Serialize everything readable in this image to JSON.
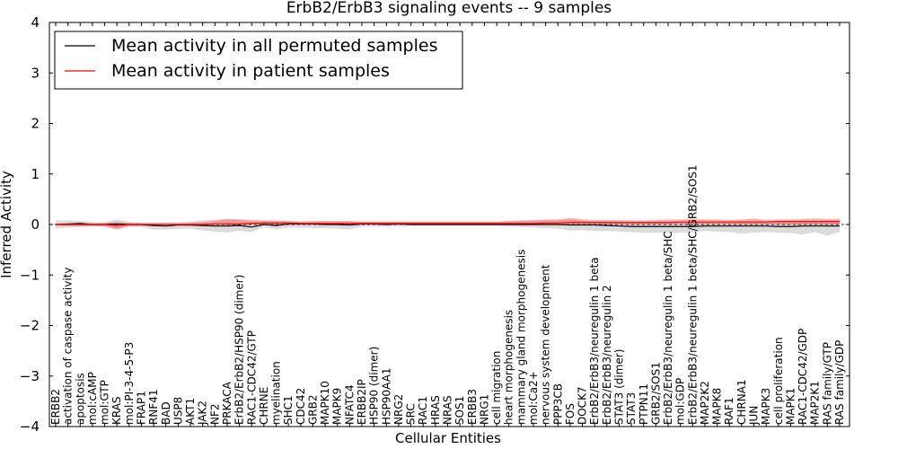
{
  "chart_data": {
    "type": "line",
    "title": "ErbB2/ErbB3 signaling events -- 9 samples",
    "xlabel": "Cellular Entities",
    "ylabel": "Inferred Activity",
    "ylim": [
      -4,
      4
    ],
    "yticks": [
      -4,
      -3,
      -2,
      -1,
      0,
      1,
      2,
      3,
      4
    ],
    "grid": false,
    "legend_placement": "top-left",
    "categories": [
      "ERBB2",
      "activation of caspase activity",
      "apoptosis",
      "mol:cAMP",
      "mol:GTP",
      "KRAS",
      "mol:PI-3-4-5-P3",
      "FRAP1",
      "RNF41",
      "BAD",
      "USP8",
      "AKT1",
      "JAK2",
      "NF2",
      "PRKACA",
      "ErbB2/ErbB2/HSP90 (dimer)",
      "RAC1-CDC42/GTP",
      "CHRNE",
      "myelination",
      "SHC1",
      "CDC42",
      "GRB2",
      "MAPK10",
      "MAPK9",
      "NFATC4",
      "ERBB2IP",
      "HSP90 (dimer)",
      "HSP90AA1",
      "NRG2",
      "SRC",
      "RAC1",
      "HRAS",
      "NRAS",
      "SOS1",
      "ERBB3",
      "NRG1",
      "cell migration",
      "heart morphogenesis",
      "mammary gland morphogenesis",
      "mol:Ca2+",
      "nervous system development",
      "PPP3CB",
      "FOS",
      "DOCK7",
      "ErbB2/ErbB3/neuregulin 1 beta",
      "ErbB2/ErbB3/neuregulin 2",
      "STAT3 (dimer)",
      "STAT3",
      "PTPN11",
      "GRB2/SOS1",
      "ErbB2/ErbB3/neuregulin 1 beta/SHC",
      "mol:GDP",
      "ErbB2/ErbB3/neuregulin 1 beta/SHC/GRB2/SOS1",
      "MAP2K2",
      "MAPK8",
      "RAF1",
      "CHRNA1",
      "JUN",
      "MAPK3",
      "cell proliferation",
      "MAPK1",
      "RAC1-CDC42/GDP",
      "MAP2K1",
      "RAS family/GTP",
      "RAS family/GDP"
    ],
    "series": [
      {
        "name": "Mean activity in all permuted samples",
        "color": "#000000",
        "values": [
          0.0,
          0.01,
          0.02,
          0.0,
          0.0,
          0.01,
          0.0,
          0.0,
          -0.02,
          -0.03,
          -0.01,
          -0.01,
          -0.02,
          -0.03,
          -0.03,
          -0.02,
          -0.05,
          0.0,
          -0.02,
          0.01,
          0.01,
          0.01,
          0.0,
          0.0,
          -0.01,
          0.01,
          0.01,
          0.0,
          0.01,
          0.0,
          0.0,
          0.0,
          0.0,
          0.0,
          0.0,
          0.0,
          0.0,
          0.0,
          0.0,
          0.0,
          0.0,
          0.0,
          -0.01,
          -0.01,
          -0.01,
          -0.02,
          -0.03,
          -0.04,
          -0.04,
          -0.04,
          -0.04,
          -0.04,
          -0.04,
          -0.03,
          -0.03,
          -0.03,
          -0.03,
          -0.03,
          -0.03,
          -0.04,
          -0.04,
          -0.03,
          -0.03,
          -0.03,
          -0.03
        ],
        "band_lower": [
          -0.08,
          -0.06,
          -0.05,
          -0.04,
          -0.03,
          -0.08,
          -0.03,
          -0.05,
          -0.1,
          -0.1,
          -0.09,
          -0.08,
          -0.12,
          -0.14,
          -0.16,
          -0.12,
          -0.15,
          -0.05,
          -0.1,
          -0.06,
          -0.06,
          -0.07,
          -0.07,
          -0.08,
          -0.1,
          -0.04,
          -0.03,
          -0.04,
          -0.03,
          -0.03,
          -0.03,
          -0.03,
          -0.03,
          -0.03,
          -0.03,
          -0.03,
          -0.03,
          -0.04,
          -0.05,
          -0.06,
          -0.07,
          -0.08,
          -0.12,
          -0.11,
          -0.13,
          -0.13,
          -0.14,
          -0.15,
          -0.16,
          -0.16,
          -0.17,
          -0.16,
          -0.15,
          -0.13,
          -0.14,
          -0.15,
          -0.18,
          -0.16,
          -0.15,
          -0.16,
          -0.17,
          -0.2,
          -0.15,
          -0.22,
          -0.15
        ],
        "band_upper": [
          0.08,
          0.08,
          0.07,
          0.05,
          0.04,
          0.1,
          0.05,
          0.04,
          0.04,
          0.05,
          0.05,
          0.06,
          0.08,
          0.1,
          0.12,
          0.09,
          0.06,
          0.07,
          0.06,
          0.06,
          0.05,
          0.05,
          0.05,
          0.05,
          0.06,
          0.05,
          0.05,
          0.05,
          0.05,
          0.05,
          0.05,
          0.05,
          0.05,
          0.05,
          0.05,
          0.05,
          0.05,
          0.06,
          0.07,
          0.07,
          0.08,
          0.08,
          0.1,
          0.07,
          0.06,
          0.06,
          0.05,
          0.04,
          0.05,
          0.05,
          0.05,
          0.05,
          0.05,
          0.05,
          0.06,
          0.06,
          0.07,
          0.06,
          0.05,
          0.06,
          0.07,
          0.06,
          0.05,
          0.08,
          0.07
        ]
      },
      {
        "name": "Mean activity in patient samples",
        "color": "#ff0000",
        "values": [
          0.0,
          0.0,
          0.0,
          0.0,
          0.0,
          -0.02,
          0.0,
          0.0,
          0.0,
          0.0,
          0.0,
          0.0,
          0.0,
          0.01,
          0.01,
          0.01,
          0.02,
          0.03,
          0.03,
          0.03,
          0.02,
          0.02,
          0.02,
          0.02,
          0.02,
          0.02,
          0.02,
          0.02,
          0.02,
          0.02,
          0.02,
          0.02,
          0.02,
          0.02,
          0.02,
          0.02,
          0.02,
          0.02,
          0.02,
          0.02,
          0.03,
          0.03,
          0.04,
          0.04,
          0.04,
          0.04,
          0.04,
          0.04,
          0.04,
          0.04,
          0.04,
          0.05,
          0.05,
          0.05,
          0.05,
          0.05,
          0.05,
          0.05,
          0.05,
          0.06,
          0.06,
          0.06,
          0.06,
          0.06,
          0.06
        ],
        "band_lower": [
          -0.02,
          -0.03,
          -0.03,
          -0.03,
          -0.04,
          -0.1,
          -0.04,
          -0.03,
          -0.03,
          -0.02,
          -0.02,
          -0.03,
          -0.02,
          -0.01,
          -0.01,
          -0.01,
          0.0,
          0.0,
          0.0,
          0.0,
          0.0,
          0.0,
          0.0,
          0.0,
          0.0,
          0.0,
          0.0,
          0.0,
          0.0,
          0.0,
          0.0,
          0.0,
          0.0,
          0.0,
          0.0,
          0.0,
          0.0,
          0.0,
          0.0,
          0.0,
          0.0,
          0.0,
          0.0,
          0.0,
          0.0,
          0.0,
          0.0,
          0.0,
          0.0,
          0.0,
          0.0,
          0.0,
          0.0,
          0.0,
          0.0,
          0.0,
          0.0,
          0.0,
          0.0,
          0.0,
          0.0,
          0.0,
          0.0,
          0.0,
          0.0
        ],
        "band_upper": [
          0.02,
          0.02,
          0.02,
          0.02,
          0.03,
          0.05,
          0.03,
          0.02,
          0.02,
          0.02,
          0.02,
          0.03,
          0.05,
          0.07,
          0.1,
          0.1,
          0.09,
          0.08,
          0.08,
          0.07,
          0.06,
          0.07,
          0.07,
          0.07,
          0.07,
          0.06,
          0.06,
          0.06,
          0.06,
          0.06,
          0.06,
          0.06,
          0.06,
          0.06,
          0.06,
          0.06,
          0.06,
          0.07,
          0.08,
          0.09,
          0.1,
          0.1,
          0.13,
          0.1,
          0.09,
          0.09,
          0.09,
          0.08,
          0.08,
          0.09,
          0.1,
          0.1,
          0.11,
          0.1,
          0.1,
          0.09,
          0.1,
          0.12,
          0.09,
          0.1,
          0.1,
          0.11,
          0.12,
          0.11,
          0.11
        ]
      }
    ]
  }
}
